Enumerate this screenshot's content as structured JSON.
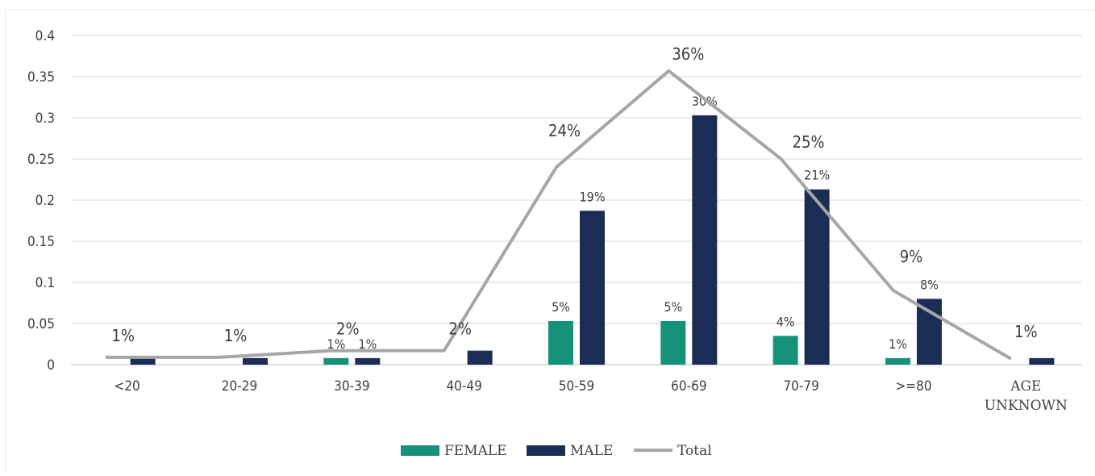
{
  "chart_data": {
    "type": "bar",
    "categories": [
      "<20",
      "20-29",
      "30-39",
      "40-49",
      "50-59",
      "60-69",
      "70-79",
      ">=80",
      "AGE UNKNOWN"
    ],
    "series": [
      {
        "name": "FEMALE",
        "kind": "bar",
        "color": "#16917a",
        "values": [
          0,
          0,
          0.008,
          0,
          0.053,
          0.053,
          0.035,
          0.008,
          0
        ],
        "labels": [
          "",
          "",
          "1%",
          "",
          "5%",
          "5%",
          "4%",
          "1%",
          ""
        ]
      },
      {
        "name": "MALE",
        "kind": "bar",
        "color": "#1b2c55",
        "values": [
          0.008,
          0.008,
          0.008,
          0.017,
          0.187,
          0.303,
          0.213,
          0.08,
          0.008
        ],
        "labels": [
          "",
          "",
          "1%",
          "",
          "19%",
          "30%",
          "21%",
          "8%",
          ""
        ]
      },
      {
        "name": "Total",
        "kind": "line",
        "color": "#a6a6a6",
        "values": [
          0.009,
          0.009,
          0.017,
          0.017,
          0.24,
          0.357,
          0.25,
          0.09,
          0.008
        ],
        "labels": [
          "1%",
          "1%",
          "2%",
          "2%",
          "24%",
          "36%",
          "25%",
          "9%",
          "1%"
        ]
      }
    ],
    "y_ticks": [
      "0",
      "0.05",
      "0.1",
      "0.15",
      "0.2",
      "0.25",
      "0.3",
      "0.35",
      "0.4"
    ],
    "ylim": [
      0,
      0.4
    ],
    "title": "",
    "xlabel": "",
    "ylabel": "",
    "grid": true,
    "legend_position": "bottom-center"
  }
}
